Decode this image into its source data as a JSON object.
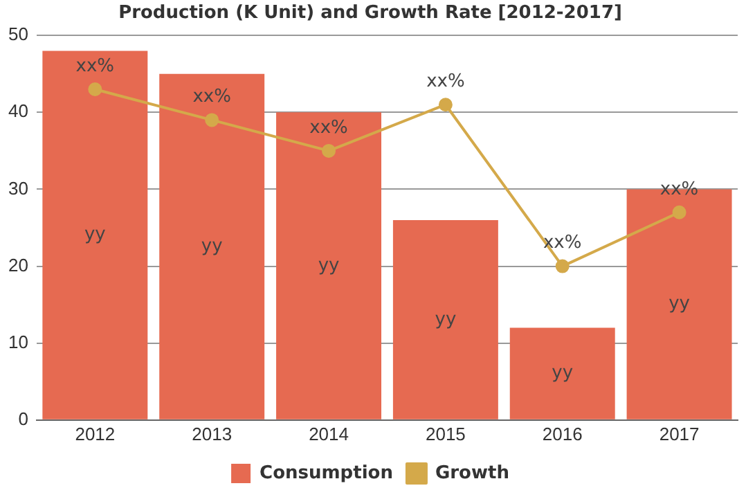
{
  "chart_data": {
    "type": "bar",
    "title": "Production (K Unit) and Growth Rate [2012-2017]",
    "categories": [
      "2012",
      "2013",
      "2014",
      "2015",
      "2016",
      "2017"
    ],
    "series": [
      {
        "name": "Consumption",
        "color": "#e66a51",
        "values": [
          48,
          45,
          40,
          26,
          12,
          30
        ],
        "value_labels": [
          "yy",
          "yy",
          "yy",
          "yy",
          "yy",
          "yy"
        ]
      },
      {
        "name": "Growth",
        "type": "line",
        "color": "#d4a94a",
        "values": [
          43,
          39,
          35,
          41,
          20,
          27
        ],
        "value_labels": [
          "xx%",
          "xx%",
          "xx%",
          "xx%",
          "xx%",
          "xx%"
        ]
      }
    ],
    "ylim": [
      0,
      50
    ],
    "yticks": [
      0,
      10,
      20,
      30,
      40,
      50
    ],
    "grid": "y",
    "legend": "bottom",
    "marker": "circle",
    "line_style": "solid"
  }
}
